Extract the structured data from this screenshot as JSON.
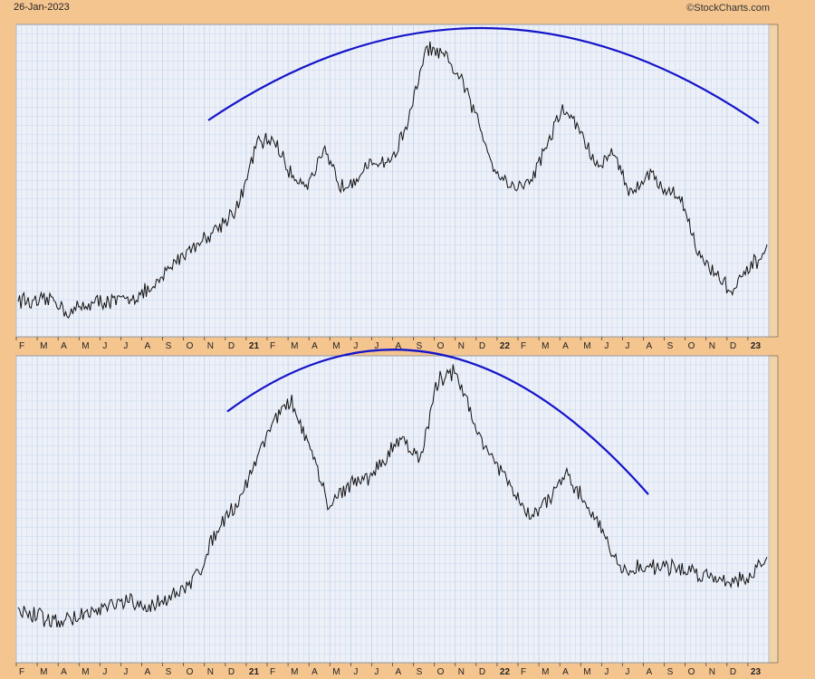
{
  "header": {
    "date": "26-Jan-2023",
    "watermark": "©StockCharts.com"
  },
  "colors": {
    "background": "#f5c590",
    "plot_bg": "#eef0f8",
    "grid": "#b9d3ec",
    "price": "#111111",
    "arc": "#1515c8"
  },
  "chart_data": [
    {
      "type": "line",
      "title": "",
      "x_tick_labels": [
        "F",
        "M",
        "A",
        "M",
        "J",
        "J",
        "A",
        "S",
        "O",
        "N",
        "D",
        "21",
        "F",
        "M",
        "A",
        "M",
        "J",
        "J",
        "A",
        "S",
        "O",
        "N",
        "D",
        "22",
        "F",
        "M",
        "A",
        "M",
        "J",
        "J",
        "A",
        "S",
        "O",
        "N",
        "D",
        "23"
      ],
      "grid": true,
      "series": [
        {
          "values": [
            0.11,
            0.09,
            0.11,
            0.06,
            0.09,
            0.1,
            0.1,
            0.12,
            0.14,
            0.22,
            0.27,
            0.31,
            0.36,
            0.42,
            0.62,
            0.64,
            0.52,
            0.49,
            0.59,
            0.48,
            0.52,
            0.56,
            0.57,
            0.71,
            0.94,
            0.91,
            0.84,
            0.7,
            0.54,
            0.48,
            0.49,
            0.61,
            0.74,
            0.67,
            0.54,
            0.6,
            0.45,
            0.53,
            0.47,
            0.44,
            0.25,
            0.19,
            0.13,
            0.21,
            0.27
          ]
        }
      ],
      "annotation": {
        "type": "arc",
        "from_value": 0.7,
        "peak_value": 1.0,
        "to_value": 0.69
      }
    },
    {
      "type": "line",
      "title": "",
      "x_tick_labels": [
        "F",
        "M",
        "A",
        "M",
        "J",
        "J",
        "A",
        "S",
        "O",
        "N",
        "D",
        "21",
        "F",
        "M",
        "A",
        "M",
        "J",
        "J",
        "A",
        "S",
        "O",
        "N",
        "D",
        "22",
        "F",
        "M",
        "A",
        "M",
        "J",
        "J",
        "A",
        "S",
        "O",
        "N",
        "D",
        "23"
      ],
      "grid": true,
      "series": [
        {
          "values": [
            0.15,
            0.14,
            0.12,
            0.13,
            0.15,
            0.17,
            0.19,
            0.16,
            0.2,
            0.22,
            0.3,
            0.45,
            0.52,
            0.66,
            0.81,
            0.86,
            0.7,
            0.51,
            0.58,
            0.6,
            0.66,
            0.75,
            0.66,
            0.94,
            0.97,
            0.78,
            0.67,
            0.57,
            0.47,
            0.53,
            0.61,
            0.53,
            0.43,
            0.29,
            0.3,
            0.31,
            0.3,
            0.29,
            0.27,
            0.26,
            0.27,
            0.33
          ]
        }
      ],
      "annotation": {
        "type": "arc",
        "from_value": 0.83,
        "peak_value": 1.0,
        "to_value": 0.55
      }
    }
  ]
}
